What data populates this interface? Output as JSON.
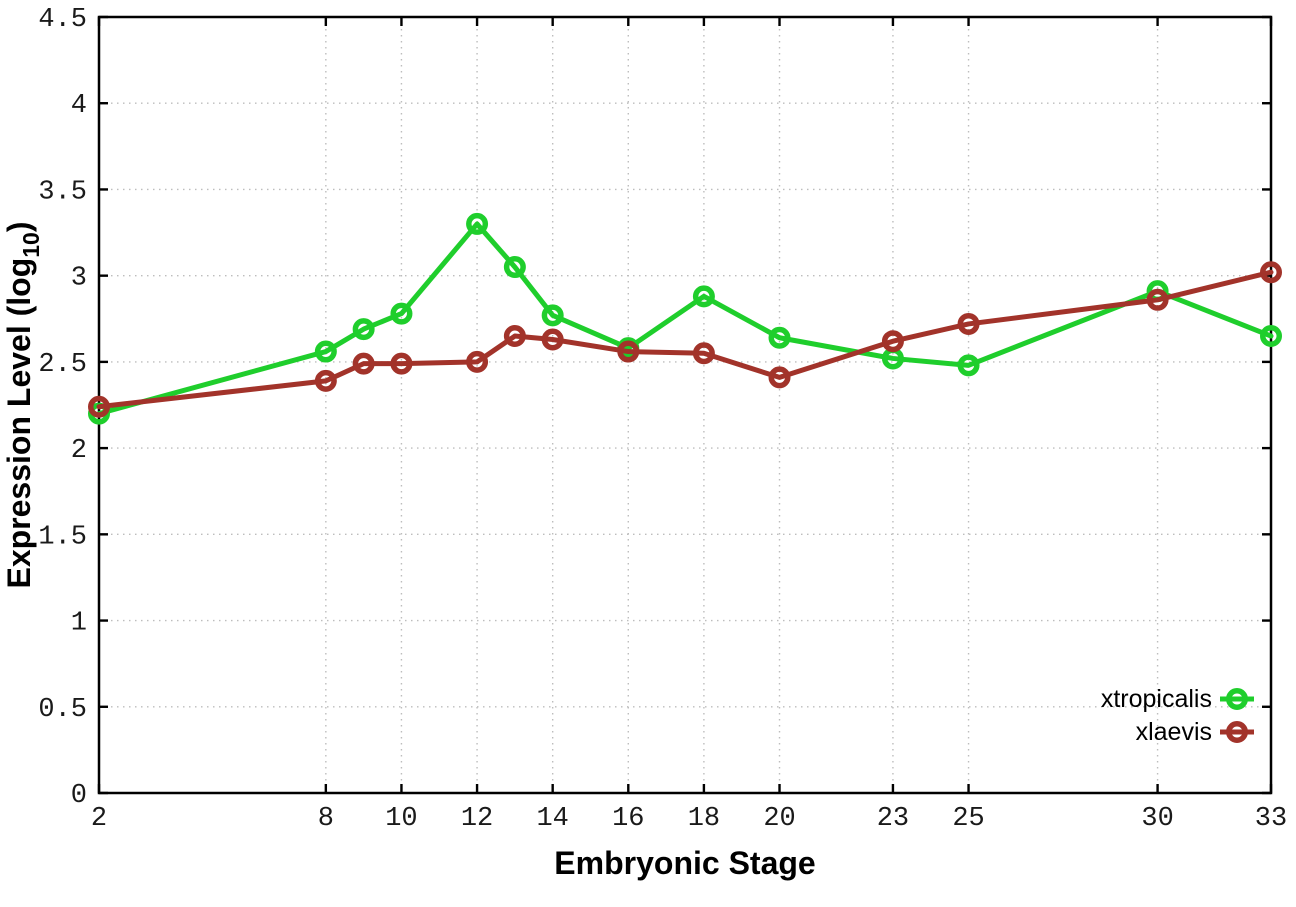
{
  "figure": {
    "background": "#ffffff",
    "xlabel": "Embryonic Stage",
    "ylabel_prefix": "Expression Level (log",
    "ylabel_sub": "10",
    "ylabel_suffix": ")",
    "text_color": "#000000",
    "grid_color": "#bdbdbd",
    "legend": [
      {
        "label": "xtropicalis",
        "color": "#1fce2c"
      },
      {
        "label": "xlaevis",
        "color": "#a2332a"
      }
    ]
  },
  "chart_data": {
    "type": "line",
    "title": "",
    "xlabel": "Embryonic Stage",
    "ylabel": "Expression Level (log10)",
    "x": [
      2,
      8,
      9,
      10,
      12,
      13,
      14,
      16,
      18,
      20,
      23,
      25,
      30,
      33
    ],
    "series": [
      {
        "name": "xtropicalis",
        "color": "#1fce2c",
        "values": [
          2.2,
          2.56,
          2.69,
          2.78,
          3.3,
          3.05,
          2.77,
          2.58,
          2.88,
          2.64,
          2.52,
          2.48,
          2.91,
          2.65
        ]
      },
      {
        "name": "xlaevis",
        "color": "#a2332a",
        "values": [
          2.24,
          2.39,
          2.49,
          2.49,
          2.5,
          2.65,
          2.63,
          2.56,
          2.55,
          2.41,
          2.62,
          2.72,
          2.86,
          3.02
        ]
      }
    ],
    "xticks": [
      2,
      8,
      10,
      12,
      14,
      16,
      18,
      20,
      23,
      25,
      30,
      33
    ],
    "xtick_labels": [
      "2",
      "8",
      "10",
      "12",
      "14",
      "16",
      "18",
      "20",
      "23",
      "25",
      "30",
      "33"
    ],
    "yticks": [
      0,
      0.5,
      1,
      1.5,
      2,
      2.5,
      3,
      3.5,
      4,
      4.5
    ],
    "ytick_labels": [
      "0",
      "0.5",
      "1",
      "1.5",
      "2",
      "2.5",
      "3",
      "3.5",
      "4",
      "4.5"
    ],
    "xlim": [
      2,
      33
    ],
    "ylim": [
      0,
      4.5
    ],
    "grid": true,
    "legend_position": "bottom-right",
    "marker": "open-circle"
  }
}
